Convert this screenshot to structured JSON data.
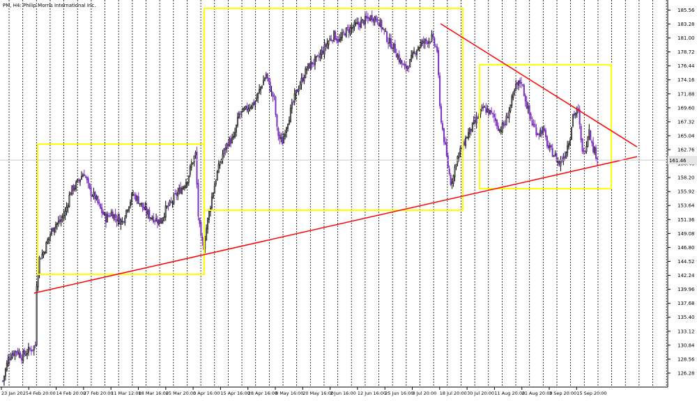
{
  "window": {
    "title": "PM, H4:  Philip Morris International Inc."
  },
  "chart_data": {
    "type": "candlestick",
    "symbol": "PM",
    "timeframe": "H4",
    "ylim": [
      124.0,
      187.2
    ],
    "price_ticks": [
      "185.56",
      "183.28",
      "181.00",
      "178.72",
      "176.44",
      "174.16",
      "171.88",
      "169.60",
      "167.32",
      "165.04",
      "162.76",
      "160.48",
      "158.20",
      "155.92",
      "153.64",
      "151.36",
      "149.08",
      "146.80",
      "144.52",
      "142.24",
      "139.96",
      "137.68",
      "135.40",
      "133.12",
      "130.84",
      "128.56",
      "126.28"
    ],
    "current_price": "161.46",
    "time_labels": [
      "23 Jan 2025",
      "4 Feb 20:00",
      "14 Feb 20:00",
      "27 Feb 20:00",
      "11 Mar 12:00",
      "18 Mar 16:00",
      "25 Mar 20:00",
      "3 Apr 16:00",
      "15 Apr 16:00",
      "28 Apr 16:00",
      "8 May 16:00",
      "20 May 16:00",
      "2 Jun 16:00",
      "12 Jun 16:00",
      "25 Jun 16:00",
      "8 Jul 20:00",
      "18 Jul 20:00",
      "30 Jul 20:00",
      "11 Aug 20:00",
      "21 Aug 20:00",
      "3 Sep 20:00",
      "15 Sep 20:00"
    ],
    "price_path": [
      [
        0,
        125.0
      ],
      [
        2,
        126.8
      ],
      [
        4,
        128.6
      ],
      [
        6,
        129.3
      ],
      [
        10,
        130.0
      ],
      [
        14,
        129.0
      ],
      [
        18,
        129.8
      ],
      [
        22,
        130.4
      ],
      [
        24,
        130.8
      ],
      [
        25,
        141.0
      ],
      [
        27,
        145.0
      ],
      [
        30,
        146.0
      ],
      [
        34,
        148.5
      ],
      [
        38,
        150.5
      ],
      [
        42,
        151.0
      ],
      [
        46,
        152.5
      ],
      [
        50,
        156.0
      ],
      [
        54,
        157.0
      ],
      [
        58,
        158.5
      ],
      [
        60,
        159.0
      ],
      [
        64,
        156.0
      ],
      [
        68,
        155.0
      ],
      [
        72,
        153.0
      ],
      [
        76,
        151.5
      ],
      [
        80,
        152.5
      ],
      [
        84,
        151.5
      ],
      [
        88,
        151.0
      ],
      [
        92,
        153.5
      ],
      [
        96,
        155.5
      ],
      [
        100,
        154.5
      ],
      [
        104,
        153.0
      ],
      [
        108,
        152.0
      ],
      [
        112,
        151.5
      ],
      [
        116,
        151.0
      ],
      [
        120,
        153.0
      ],
      [
        124,
        154.0
      ],
      [
        128,
        155.5
      ],
      [
        132,
        156.5
      ],
      [
        136,
        158.0
      ],
      [
        140,
        161.0
      ],
      [
        142,
        162.0
      ],
      [
        144,
        152.0
      ],
      [
        146,
        148.0
      ],
      [
        148,
        147.0
      ],
      [
        150,
        150.0
      ],
      [
        154,
        155.0
      ],
      [
        158,
        159.0
      ],
      [
        162,
        162.0
      ],
      [
        166,
        164.0
      ],
      [
        170,
        164.5
      ],
      [
        174,
        168.5
      ],
      [
        178,
        169.0
      ],
      [
        182,
        170.0
      ],
      [
        186,
        170.5
      ],
      [
        190,
        173.0
      ],
      [
        194,
        175.0
      ],
      [
        198,
        172.0
      ],
      [
        200,
        171.0
      ],
      [
        202,
        166.0
      ],
      [
        204,
        164.5
      ],
      [
        206,
        164.0
      ],
      [
        208,
        166.0
      ],
      [
        212,
        169.0
      ],
      [
        216,
        172.0
      ],
      [
        220,
        174.0
      ],
      [
        224,
        176.0
      ],
      [
        228,
        177.0
      ],
      [
        232,
        177.5
      ],
      [
        236,
        179.0
      ],
      [
        240,
        180.5
      ],
      [
        244,
        181.5
      ],
      [
        248,
        180.5
      ],
      [
        252,
        182.0
      ],
      [
        256,
        182.5
      ],
      [
        260,
        183.0
      ],
      [
        264,
        183.5
      ],
      [
        268,
        184.0
      ],
      [
        272,
        184.5
      ],
      [
        276,
        184.0
      ],
      [
        280,
        182.5
      ],
      [
        284,
        180.5
      ],
      [
        288,
        179.5
      ],
      [
        292,
        177.5
      ],
      [
        296,
        176.0
      ],
      [
        300,
        177.0
      ],
      [
        304,
        179.0
      ],
      [
        308,
        180.0
      ],
      [
        312,
        180.5
      ],
      [
        316,
        181.0
      ],
      [
        320,
        179.0
      ],
      [
        322,
        169.5
      ],
      [
        324,
        166.0
      ],
      [
        326,
        163.0
      ],
      [
        328,
        160.0
      ],
      [
        330,
        157.5
      ],
      [
        332,
        158.5
      ],
      [
        334,
        161.0
      ],
      [
        338,
        163.0
      ],
      [
        342,
        165.0
      ],
      [
        346,
        166.5
      ],
      [
        350,
        168.0
      ],
      [
        354,
        169.5
      ],
      [
        358,
        169.0
      ],
      [
        362,
        168.0
      ],
      [
        366,
        166.0
      ],
      [
        370,
        167.0
      ],
      [
        374,
        170.0
      ],
      [
        378,
        173.0
      ],
      [
        382,
        174.0
      ],
      [
        386,
        170.0
      ],
      [
        390,
        167.0
      ],
      [
        394,
        165.5
      ],
      [
        398,
        166.0
      ],
      [
        402,
        163.0
      ],
      [
        406,
        162.0
      ],
      [
        410,
        160.5
      ],
      [
        414,
        162.0
      ],
      [
        418,
        165.0
      ],
      [
        420,
        168.5
      ],
      [
        424,
        169.0
      ],
      [
        426,
        164.0
      ],
      [
        428,
        162.0
      ],
      [
        430,
        164.0
      ],
      [
        432,
        166.5
      ],
      [
        434,
        163.5
      ],
      [
        436,
        162.5
      ],
      [
        438,
        161.5
      ]
    ]
  }
}
